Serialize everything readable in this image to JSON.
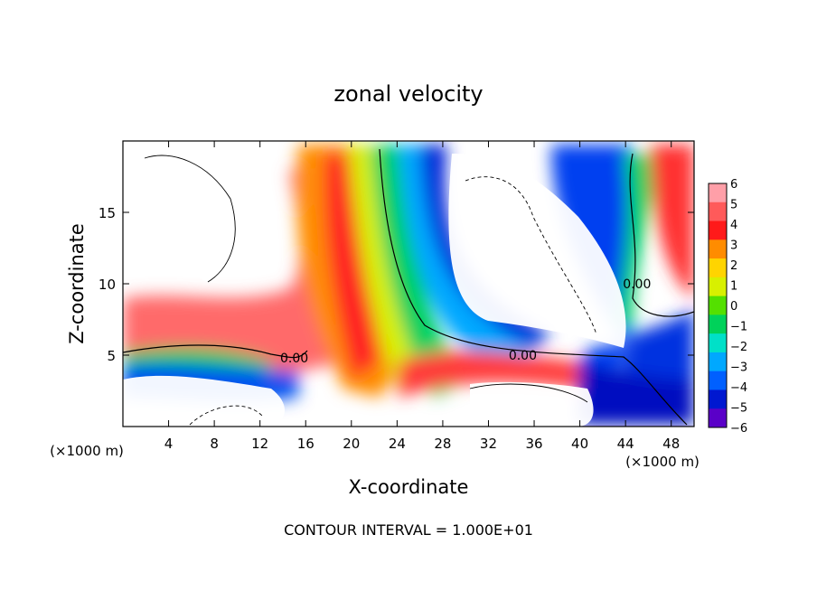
{
  "chart_data": {
    "type": "heatmap",
    "title": "zonal velocity",
    "xlabel": "X-coordinate",
    "ylabel": "Z-coordinate",
    "x_unit_left": "(×1000 m)",
    "x_unit_right": "(×1000 m)",
    "footer": "CONTOUR INTERVAL = 1.000E+01",
    "xlim": [
      0,
      50
    ],
    "ylim": [
      0,
      20
    ],
    "x_ticks": [
      "4",
      "8",
      "12",
      "16",
      "20",
      "24",
      "28",
      "32",
      "36",
      "40",
      "44",
      "48"
    ],
    "x_tick_values": [
      4,
      8,
      12,
      16,
      20,
      24,
      28,
      32,
      36,
      40,
      44,
      48
    ],
    "y_ticks": [
      "5",
      "10",
      "15"
    ],
    "y_tick_values": [
      5,
      10,
      15
    ],
    "colorbar": {
      "labels": [
        "6",
        "5",
        "4",
        "3",
        "2",
        "1",
        "0",
        "−1",
        "−2",
        "−3",
        "−4",
        "−5",
        "−6"
      ],
      "values": [
        6,
        5,
        4,
        3,
        2,
        1,
        0,
        -1,
        -2,
        -3,
        -4,
        -5,
        -6
      ],
      "colors": [
        "#ff9fa8",
        "#ff5a5a",
        "#ff1a1a",
        "#ff8c00",
        "#ffd400",
        "#d8f000",
        "#54e000",
        "#00d25a",
        "#00e0c8",
        "#00a8ff",
        "#0060ff",
        "#0018d0",
        "#5a00c8"
      ]
    },
    "contour_labels": [
      {
        "text": "0.00",
        "x": 15,
        "y": 4.8
      },
      {
        "text": "0.00",
        "x": 35,
        "y": 5.0
      },
      {
        "text": "0.00",
        "x": 45,
        "y": 10.0
      }
    ]
  }
}
